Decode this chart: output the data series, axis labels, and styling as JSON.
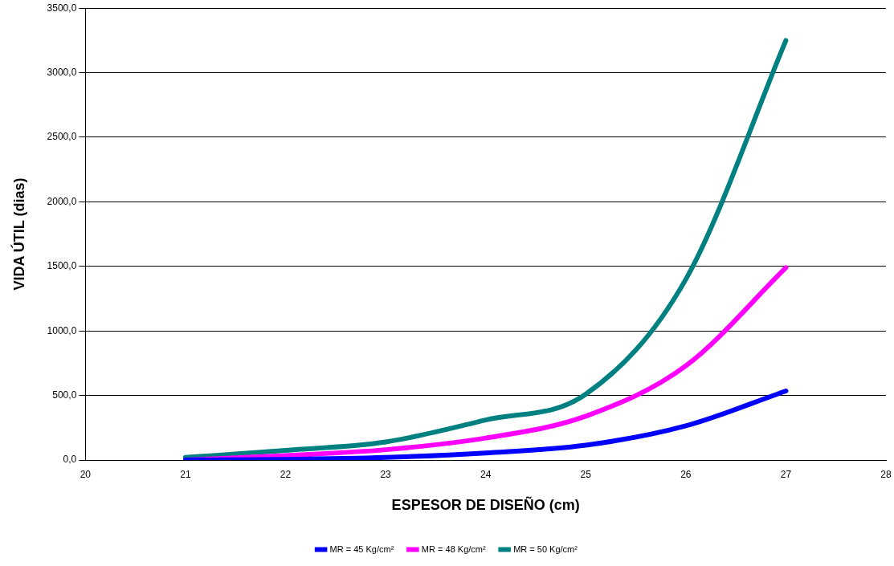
{
  "chart_data": {
    "type": "line",
    "xlabel": "ESPESOR DE DISEÑO (cm)",
    "ylabel": "VIDA ÚTIL (dias)",
    "x": [
      21,
      22,
      23,
      24,
      25,
      26,
      27
    ],
    "series": [
      {
        "name": "MR = 45 Kg/cm²",
        "color": "#0000ff",
        "values": [
          0,
          5,
          20,
          55,
          115,
          265,
          535
        ]
      },
      {
        "name": "MR = 48 Kg/cm²",
        "color": "#ff00ff",
        "values": [
          0,
          35,
          80,
          170,
          340,
          730,
          1490
        ]
      },
      {
        "name": "MR = 50 Kg/cm²",
        "color": "#008080",
        "values": [
          20,
          75,
          140,
          310,
          510,
          1400,
          3250
        ]
      }
    ],
    "xlim": [
      20,
      28
    ],
    "xticks": [
      20,
      21,
      22,
      23,
      24,
      25,
      26,
      27,
      28
    ],
    "ylim": [
      0,
      3500
    ],
    "yticks": [
      {
        "value": 0,
        "label": "0,0"
      },
      {
        "value": 500,
        "label": "500,0"
      },
      {
        "value": 1000,
        "label": "1000,0"
      },
      {
        "value": 1500,
        "label": "1500,0"
      },
      {
        "value": 2000,
        "label": "2000,0"
      },
      {
        "value": 2500,
        "label": "2500,0"
      },
      {
        "value": 3000,
        "label": "3000,0"
      },
      {
        "value": 3500,
        "label": "3500,0"
      }
    ],
    "grid": "y",
    "legend": "bottom",
    "marker": "none",
    "line_style": "solid"
  }
}
